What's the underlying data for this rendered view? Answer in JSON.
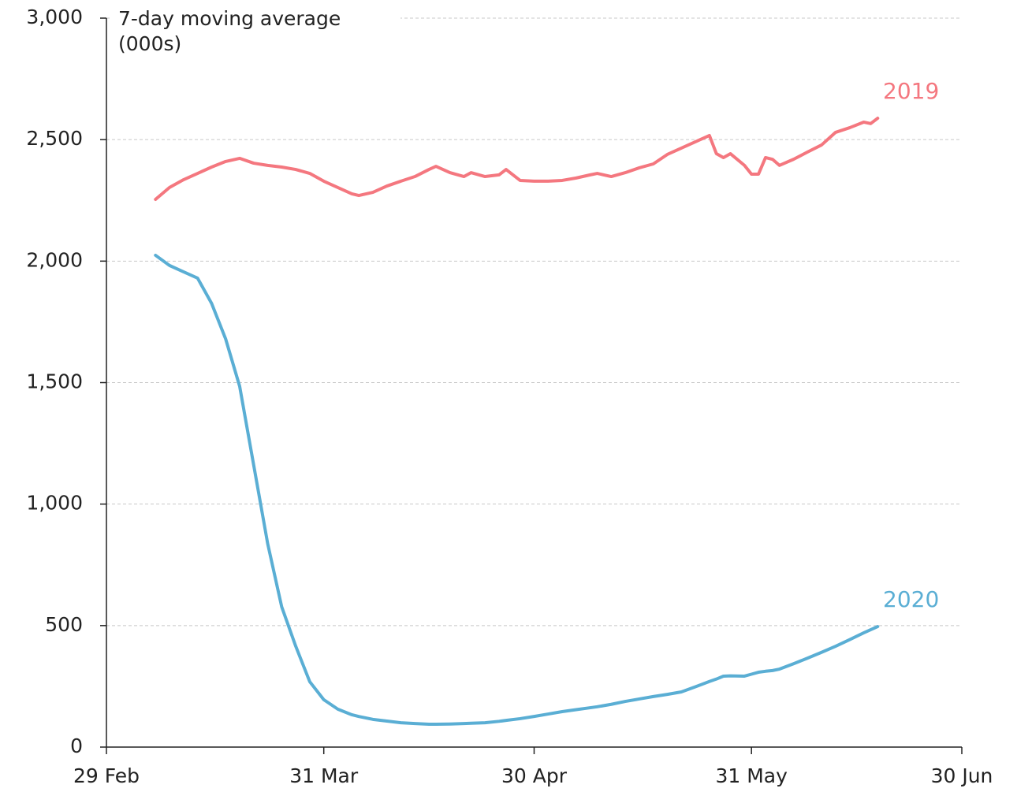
{
  "chart_data": {
    "type": "line",
    "ylabel": "7-day moving average (000s)",
    "x": [
      7,
      9,
      11,
      13,
      15,
      17,
      19,
      21,
      23,
      25,
      27,
      29,
      31,
      33,
      35,
      36,
      38,
      40,
      42,
      44,
      46,
      47,
      49,
      51,
      52,
      54,
      56,
      57,
      59,
      61,
      63,
      65,
      67,
      69,
      70,
      72,
      74,
      76,
      78,
      80,
      82,
      84,
      86,
      87,
      88,
      89,
      91,
      92,
      93,
      94,
      95,
      96,
      98,
      100,
      102,
      104,
      106,
      108,
      109,
      110
    ],
    "series": [
      {
        "name": "2019",
        "color": "#f4777f",
        "values": [
          2254,
          2303,
          2335,
          2361,
          2387,
          2410,
          2423,
          2403,
          2394,
          2387,
          2377,
          2361,
          2329,
          2303,
          2277,
          2270,
          2283,
          2309,
          2329,
          2348,
          2377,
          2390,
          2364,
          2348,
          2364,
          2348,
          2355,
          2377,
          2332,
          2329,
          2329,
          2332,
          2342,
          2355,
          2361,
          2348,
          2364,
          2384,
          2400,
          2439,
          2465,
          2491,
          2517,
          2442,
          2426,
          2442,
          2394,
          2358,
          2358,
          2426,
          2419,
          2394,
          2419,
          2449,
          2478,
          2530,
          2549,
          2572,
          2566,
          2588
        ]
      },
      {
        "name": "2020",
        "color": "#5aaed4",
        "values": [
          2024,
          1982,
          1956,
          1930,
          1826,
          1680,
          1485,
          1161,
          837,
          577,
          415,
          269,
          195,
          156,
          133,
          126,
          114,
          107,
          100,
          97,
          94,
          94,
          95,
          97,
          98,
          100,
          106,
          110,
          117,
          126,
          136,
          146,
          154,
          162,
          166,
          176,
          188,
          198,
          208,
          217,
          227,
          248,
          270,
          280,
          292,
          293,
          292,
          300,
          308,
          312,
          315,
          321,
          343,
          366,
          390,
          415,
          442,
          470,
          483,
          496
        ]
      }
    ],
    "xlim": [
      0,
      122
    ],
    "xticks": [
      {
        "value": 0,
        "label": "29 Feb"
      },
      {
        "value": 31,
        "label": "31 Mar"
      },
      {
        "value": 61,
        "label": "30 Apr"
      },
      {
        "value": 92,
        "label": "31 May"
      },
      {
        "value": 122,
        "label": "30 Jun"
      }
    ],
    "ylim": [
      0,
      3000
    ],
    "yticks": [
      0,
      500,
      {
        "value": 1000,
        "label": "1,000"
      },
      {
        "value": 1500,
        "label": "1,500"
      },
      {
        "value": 2000,
        "label": "2,000"
      },
      {
        "value": 2500,
        "label": "2,500"
      },
      {
        "value": 3000,
        "label": "3,000"
      }
    ],
    "grid": true
  }
}
